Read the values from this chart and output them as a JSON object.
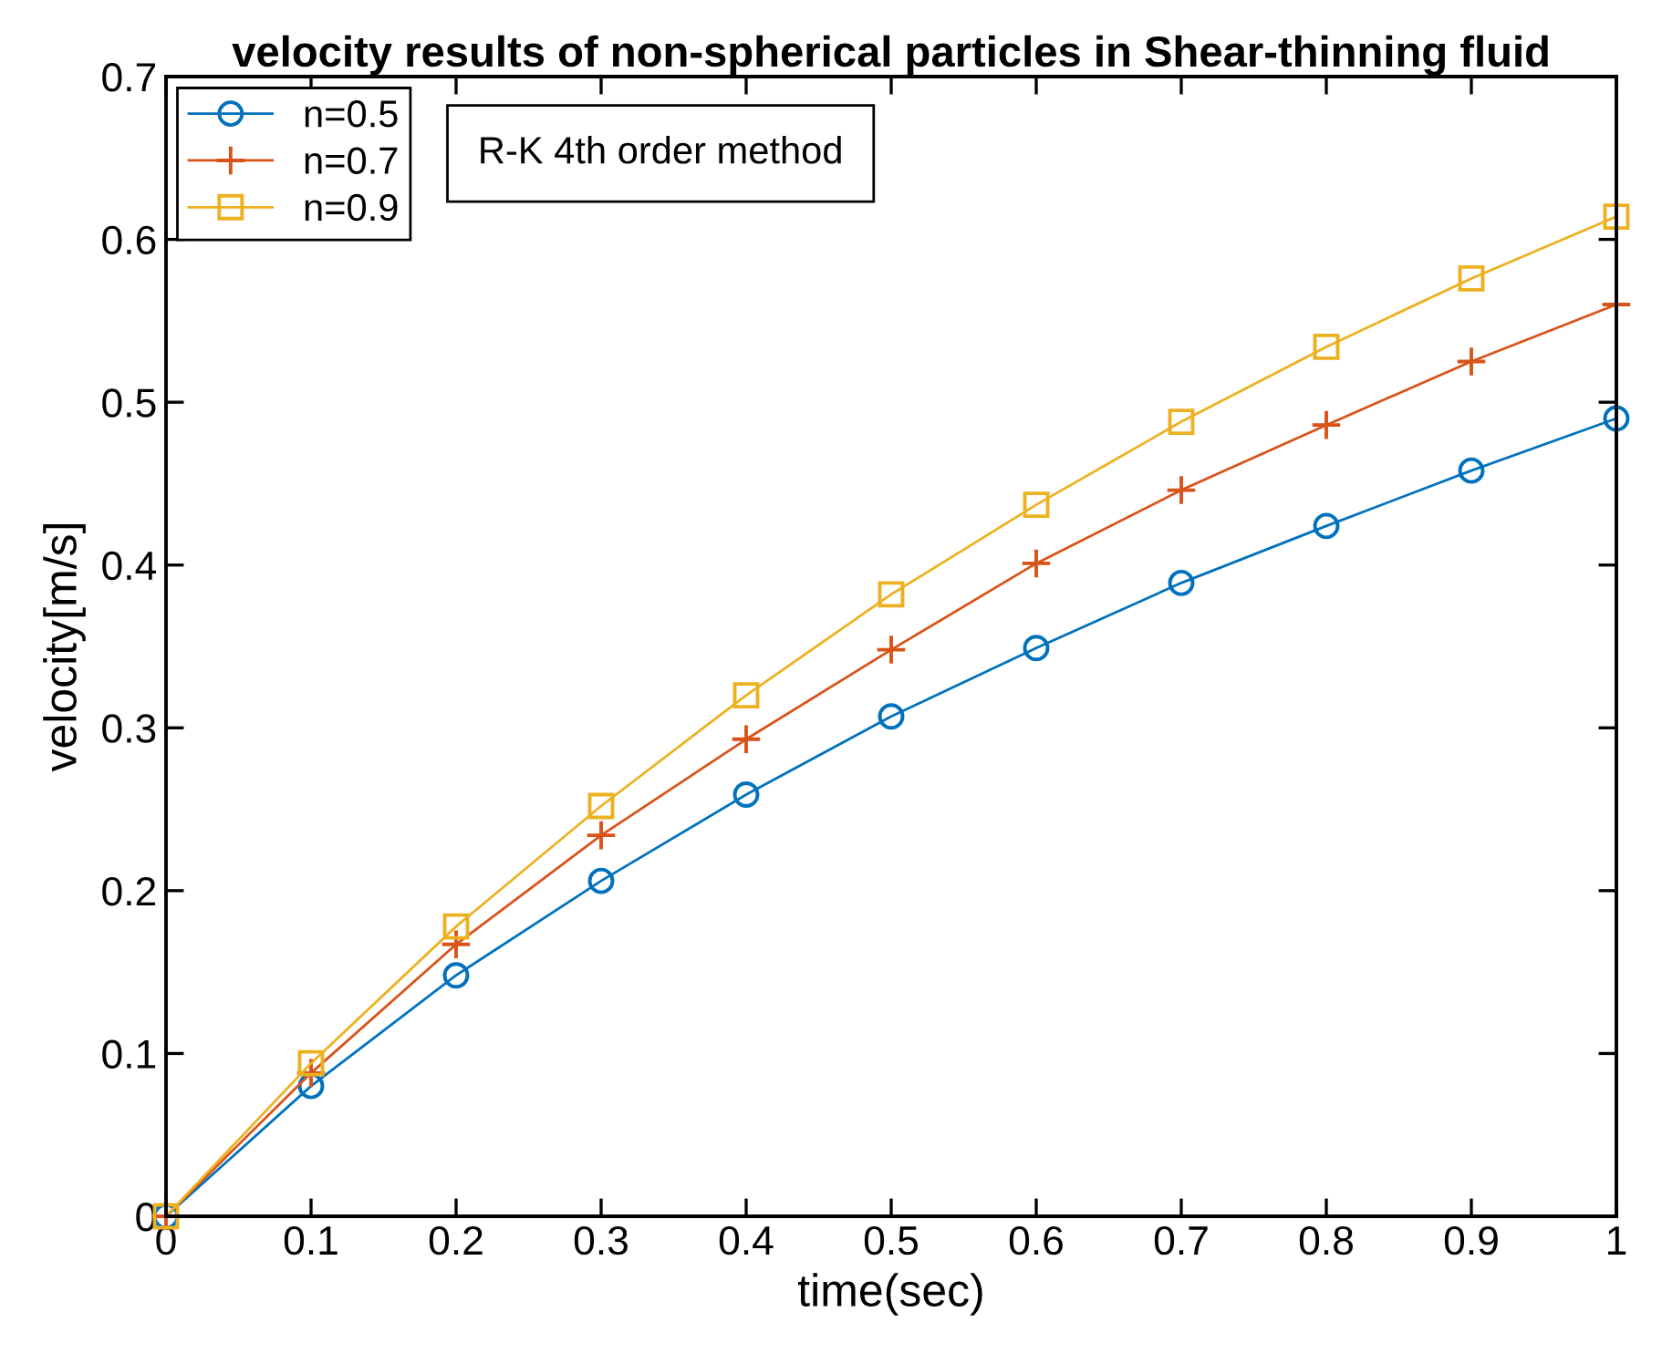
{
  "chart_data": {
    "type": "line",
    "title": "velocity results of non-spherical particles in Shear-thinning fluid",
    "xlabel": "time(sec)",
    "ylabel": "velocity[m/s]",
    "x": [
      0,
      0.1,
      0.2,
      0.3,
      0.4,
      0.5,
      0.6,
      0.7,
      0.8,
      0.9,
      1
    ],
    "series": [
      {
        "name": "n=0.5",
        "color": "#0072bd",
        "marker": "circle",
        "values": [
          0,
          0.08,
          0.148,
          0.206,
          0.259,
          0.307,
          0.349,
          0.389,
          0.424,
          0.458,
          0.49
        ]
      },
      {
        "name": "n=0.7",
        "color": "#d95319",
        "marker": "cross",
        "values": [
          0,
          0.088,
          0.167,
          0.234,
          0.293,
          0.348,
          0.401,
          0.446,
          0.486,
          0.525,
          0.56
        ]
      },
      {
        "name": "n=0.9",
        "color": "#edb120",
        "marker": "square",
        "values": [
          0,
          0.094,
          0.178,
          0.252,
          0.32,
          0.382,
          0.437,
          0.488,
          0.534,
          0.576,
          0.614
        ]
      }
    ],
    "xlim": [
      0,
      1
    ],
    "xticks": [
      0,
      0.1,
      0.2,
      0.3,
      0.4,
      0.5,
      0.6,
      0.7,
      0.8,
      0.9,
      1
    ],
    "ylim": [
      0,
      0.7
    ],
    "yticks": [
      0,
      0.1,
      0.2,
      0.3,
      0.4,
      0.5,
      0.6,
      0.7
    ],
    "grid": false,
    "legend": "top left",
    "line_style": "solid",
    "annotations": [
      "R-K 4th order method"
    ]
  }
}
